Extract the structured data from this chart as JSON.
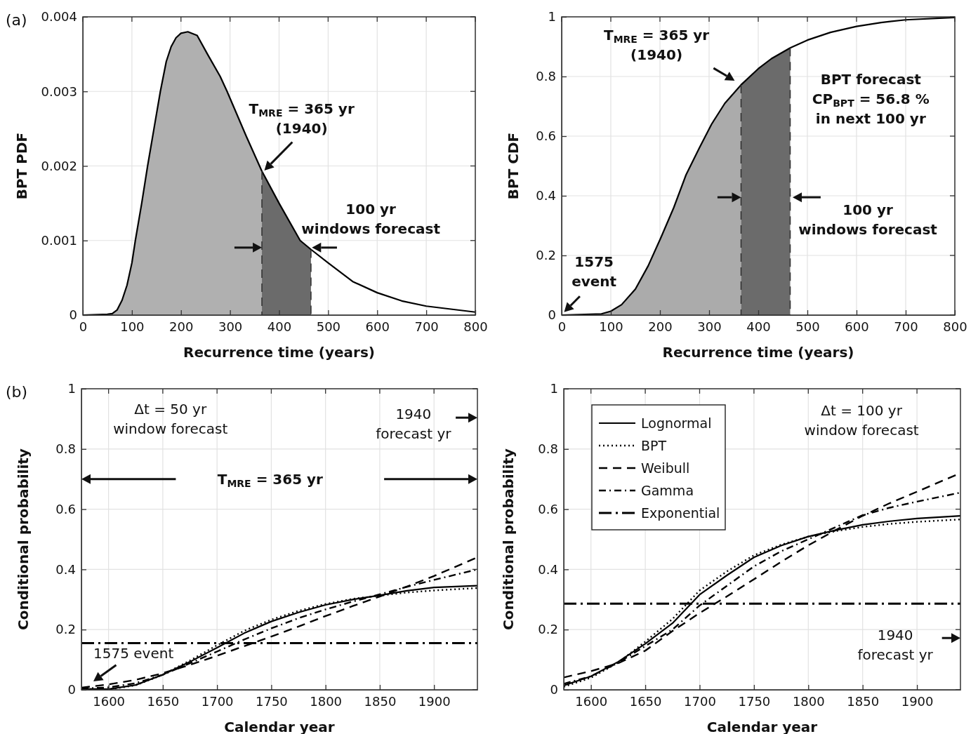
{
  "chart_data": [
    {
      "type": "line",
      "title": "(a)",
      "xlabel": "Recurrence time (years)",
      "ylabel": "BPT PDF",
      "xlim": [
        0,
        800
      ],
      "ylim": [
        0,
        0.004
      ],
      "xticks": [
        0,
        100,
        200,
        300,
        400,
        500,
        600,
        700,
        800
      ],
      "yticks": [
        0,
        0.001,
        0.002,
        0.003,
        0.004
      ],
      "grid": true,
      "series": [
        {
          "type": "area",
          "color": "#b0b0b0",
          "x": [
            0,
            50,
            60,
            70,
            80,
            90,
            100,
            107,
            120,
            132,
            145,
            158,
            170,
            180,
            190,
            200,
            214,
            233,
            254,
            280,
            294,
            307,
            333,
            365
          ],
          "values": [
            0,
            1e-05,
            2e-05,
            7e-05,
            0.0002,
            0.0004,
            0.0007,
            0.001,
            0.0015,
            0.002,
            0.0025,
            0.003,
            0.0034,
            0.0036,
            0.00372,
            0.00378,
            0.0038,
            0.00375,
            0.0035,
            0.0032,
            0.003,
            0.0028,
            0.0024,
            0.00193
          ]
        },
        {
          "type": "area",
          "color": "#6b6b6b",
          "x": [
            365,
            400,
            443,
            465
          ],
          "values": [
            0.00193,
            0.0015,
            0.001,
            0.00088
          ]
        },
        {
          "color": "#000000",
          "x": [
            0,
            50,
            60,
            70,
            80,
            90,
            100,
            107,
            120,
            132,
            145,
            158,
            170,
            180,
            190,
            200,
            214,
            233,
            254,
            280,
            294,
            307,
            333,
            365,
            400,
            443,
            465,
            500,
            550,
            600,
            650,
            700,
            800
          ],
          "values": [
            0,
            1e-05,
            2e-05,
            7e-05,
            0.0002,
            0.0004,
            0.0007,
            0.001,
            0.0015,
            0.002,
            0.0025,
            0.003,
            0.0034,
            0.0036,
            0.00372,
            0.00378,
            0.0038,
            0.00375,
            0.0035,
            0.0032,
            0.003,
            0.0028,
            0.0024,
            0.00193,
            0.0015,
            0.001,
            0.00088,
            0.0007,
            0.00045,
            0.0003,
            0.00019,
            0.00012,
            4e-05
          ]
        }
      ],
      "ref_lines": [
        {
          "axis": "x",
          "value": 365,
          "color": "#333333",
          "line_style": "dashed"
        },
        {
          "axis": "x",
          "value": 465,
          "color": "#333333",
          "line_style": "dashed"
        }
      ],
      "annotations": [
        "T$_{MRE}$ = 365 yr\n(1940)",
        "100 yr\nwindows forecast"
      ]
    },
    {
      "type": "line",
      "xlabel": "Recurrence time (years)",
      "ylabel": "BPT CDF",
      "xlim": [
        0,
        800
      ],
      "ylim": [
        0,
        1
      ],
      "xticks": [
        0,
        100,
        200,
        300,
        400,
        500,
        600,
        700,
        800
      ],
      "yticks": [
        0,
        0.2,
        0.4,
        0.6,
        0.8,
        1
      ],
      "grid": true,
      "series": [
        {
          "type": "area",
          "color": "#ababab",
          "x": [
            0,
            81,
            100,
            122,
            150,
            176,
            202,
            228,
            253,
            280,
            305,
            332,
            365
          ],
          "values": [
            0,
            0.004,
            0.013,
            0.035,
            0.087,
            0.165,
            0.26,
            0.36,
            0.47,
            0.56,
            0.64,
            0.71,
            0.772
          ]
        },
        {
          "type": "area",
          "color": "#6b6b6b",
          "x": [
            365,
            400,
            427,
            465
          ],
          "values": [
            0.772,
            0.826,
            0.86,
            0.896
          ]
        },
        {
          "color": "#000000",
          "x": [
            0,
            81,
            100,
            122,
            150,
            176,
            202,
            228,
            253,
            280,
            305,
            332,
            365,
            400,
            427,
            465,
            500,
            547,
            600,
            650,
            700,
            800
          ],
          "values": [
            0,
            0.004,
            0.013,
            0.035,
            0.087,
            0.165,
            0.26,
            0.36,
            0.47,
            0.56,
            0.64,
            0.71,
            0.772,
            0.826,
            0.86,
            0.896,
            0.922,
            0.948,
            0.968,
            0.981,
            0.99,
            0.998
          ]
        }
      ],
      "ref_lines": [
        {
          "axis": "x",
          "value": 365,
          "color": "#333333",
          "line_style": "dashed"
        },
        {
          "axis": "x",
          "value": 465,
          "color": "#333333",
          "line_style": "dashed"
        }
      ],
      "annotations": [
        "T$_{MRE}$ = 365 yr\n(1940)",
        "BPT forecast\nCP$_{BPT}$ = 56.8 %\nin next 100 yr",
        "100 yr\nwindows forecast",
        "1575\nevent"
      ]
    },
    {
      "type": "line",
      "title": "(b)",
      "xlabel": "Calendar year",
      "ylabel": "Conditional probability",
      "xlim": [
        1575,
        1940
      ],
      "ylim": [
        0,
        1
      ],
      "xticks": [
        1600,
        1650,
        1700,
        1750,
        1800,
        1850,
        1900
      ],
      "yticks": [
        0,
        0.2,
        0.4,
        0.6,
        0.8,
        1
      ],
      "grid": true,
      "x": [
        1575,
        1600,
        1625,
        1650,
        1675,
        1700,
        1725,
        1750,
        1775,
        1800,
        1825,
        1850,
        1875,
        1900,
        1940
      ],
      "series": [
        {
          "color": "#000000",
          "line_style": "solid",
          "values": [
            0.003,
            0.002,
            0.016,
            0.05,
            0.093,
            0.14,
            0.188,
            0.227,
            0.257,
            0.282,
            0.3,
            0.314,
            0.329,
            0.34,
            0.346
          ]
        },
        {
          "color": "#000000",
          "line_style": "dotted",
          "values": [
            0,
            0.001,
            0.015,
            0.05,
            0.097,
            0.148,
            0.196,
            0.233,
            0.262,
            0.285,
            0.302,
            0.313,
            0.323,
            0.33,
            0.338
          ]
        },
        {
          "color": "#000000",
          "line_style": "dashed",
          "values": [
            0.007,
            0.018,
            0.033,
            0.055,
            0.083,
            0.113,
            0.145,
            0.177,
            0.21,
            0.245,
            0.278,
            0.31,
            0.343,
            0.378,
            0.44
          ]
        },
        {
          "color": "#000000",
          "line_style": "dashdot",
          "values": [
            0.004,
            0.008,
            0.022,
            0.05,
            0.088,
            0.127,
            0.167,
            0.204,
            0.238,
            0.267,
            0.293,
            0.317,
            0.342,
            0.365,
            0.4
          ]
        },
        {
          "color": "#000000",
          "line_style": "longdashdot",
          "x": [
            1575,
            1940
          ],
          "values": [
            0.155,
            0.155
          ]
        }
      ],
      "annotations": [
        "Δt = 50 yr\nwindow forecast",
        "1940\nforecast yr",
        "T$_{MRE}$ = 365 yr",
        "1575 event"
      ]
    },
    {
      "type": "line",
      "xlabel": "Calendar year",
      "ylabel": "Conditional probability",
      "xlim": [
        1575,
        1940
      ],
      "ylim": [
        0,
        1
      ],
      "xticks": [
        1600,
        1650,
        1700,
        1750,
        1800,
        1850,
        1900
      ],
      "yticks": [
        0,
        0.2,
        0.4,
        0.6,
        0.8,
        1
      ],
      "grid": true,
      "legend": "top left",
      "x": [
        1575,
        1600,
        1625,
        1650,
        1675,
        1700,
        1725,
        1750,
        1775,
        1800,
        1825,
        1850,
        1875,
        1900,
        1940
      ],
      "series": [
        {
          "name": "Lognormal",
          "color": "#000000",
          "line_style": "solid",
          "values": [
            0.014,
            0.045,
            0.093,
            0.153,
            0.221,
            0.316,
            0.38,
            0.44,
            0.479,
            0.509,
            0.53,
            0.548,
            0.56,
            0.569,
            0.578
          ]
        },
        {
          "name": "BPT",
          "color": "#000000",
          "line_style": "dotted",
          "values": [
            0.01,
            0.04,
            0.09,
            0.16,
            0.235,
            0.33,
            0.393,
            0.447,
            0.482,
            0.509,
            0.527,
            0.541,
            0.551,
            0.558,
            0.566
          ]
        },
        {
          "name": "Weibull",
          "color": "#000000",
          "line_style": "dashed",
          "values": [
            0.041,
            0.062,
            0.088,
            0.13,
            0.195,
            0.255,
            0.31,
            0.367,
            0.425,
            0.48,
            0.53,
            0.578,
            0.62,
            0.658,
            0.72
          ]
        },
        {
          "name": "Gamma",
          "color": "#000000",
          "line_style": "dashdot",
          "values": [
            0.02,
            0.045,
            0.09,
            0.145,
            0.2,
            0.28,
            0.345,
            0.41,
            0.46,
            0.5,
            0.54,
            0.58,
            0.605,
            0.625,
            0.655
          ]
        },
        {
          "name": "Exponential",
          "color": "#000000",
          "line_style": "longdashdot",
          "x": [
            1575,
            1940
          ],
          "values": [
            0.286,
            0.286
          ]
        }
      ],
      "annotations": [
        "Δt = 100 yr\nwindow forecast",
        "1940\nforecast yr"
      ]
    }
  ]
}
